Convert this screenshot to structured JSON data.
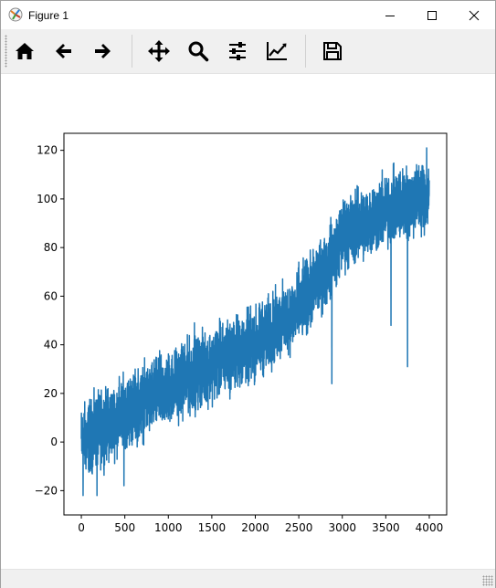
{
  "window": {
    "title": "Figure 1"
  },
  "icons": {
    "app": "matplotlib-figure-icon",
    "minimize": "minimize-icon",
    "maximize": "maximize-icon",
    "close": "close-icon",
    "home": "home-icon",
    "back": "arrow-left-icon",
    "forward": "arrow-right-icon",
    "pan": "move-icon",
    "zoom": "magnifier-icon",
    "subplots": "sliders-icon",
    "customize": "line-chart-icon",
    "save": "floppy-disk-icon"
  },
  "colors": {
    "series": "#1f77b4",
    "toolbar_bg": "#f0f0f0"
  },
  "chart_data": {
    "type": "line",
    "xlim": [
      -200,
      4200
    ],
    "ylim": [
      -30,
      127
    ],
    "xticks": [
      0,
      500,
      1000,
      1500,
      2000,
      2500,
      3000,
      3500,
      4000
    ],
    "yticks": [
      -20,
      0,
      20,
      40,
      60,
      80,
      100,
      120
    ],
    "series": [
      {
        "points": 4000,
        "x_range": [
          0,
          3999
        ],
        "trend": [
          [
            0,
            0
          ],
          [
            500,
            12
          ],
          [
            1000,
            22
          ],
          [
            1500,
            32
          ],
          [
            2000,
            40
          ],
          [
            2500,
            55
          ],
          [
            2800,
            70
          ],
          [
            3000,
            85
          ],
          [
            3500,
            95
          ],
          [
            4000,
            102
          ]
        ],
        "noise_amplitude": 7,
        "extremes": {
          "min": [
            [
              20,
              -22
            ],
            [
              180,
              -22
            ],
            [
              490,
              -18
            ],
            [
              2880,
              24
            ],
            [
              3560,
              48
            ],
            [
              3750,
              31
            ]
          ],
          "max": [
            [
              1300,
              49
            ],
            [
              2500,
              74
            ],
            [
              3150,
              104
            ],
            [
              3650,
              110
            ],
            [
              3970,
              121
            ]
          ]
        }
      }
    ]
  }
}
